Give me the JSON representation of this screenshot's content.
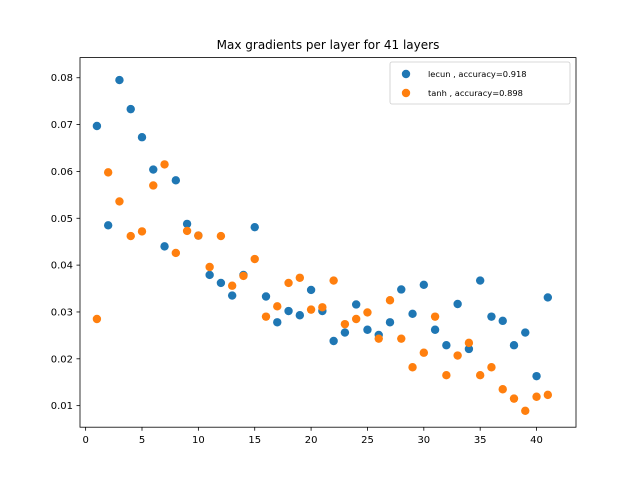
{
  "chart_data": {
    "type": "scatter",
    "title": "Max gradients per layer for 41 layers",
    "xlabel": "",
    "ylabel": "",
    "xlim": [
      -0.5,
      43.5
    ],
    "ylim": [
      0.0054,
      0.0843
    ],
    "xticks": [
      0,
      5,
      10,
      15,
      20,
      25,
      30,
      35,
      40
    ],
    "yticks": [
      0.01,
      0.02,
      0.03,
      0.04,
      0.05,
      0.06,
      0.07,
      0.08
    ],
    "legend_position": "top-right",
    "grid": false,
    "series": [
      {
        "name": "lecun , accuracy=0.918",
        "color": "#1f77b4",
        "x": [
          1,
          2,
          3,
          4,
          5,
          6,
          7,
          8,
          9,
          10,
          11,
          12,
          13,
          14,
          15,
          16,
          17,
          18,
          19,
          20,
          21,
          22,
          23,
          24,
          25,
          26,
          27,
          28,
          29,
          30,
          31,
          32,
          33,
          34,
          35,
          36,
          37,
          38,
          39,
          40,
          41
        ],
        "y": [
          0.0697,
          0.0485,
          0.0795,
          0.0733,
          0.0673,
          0.0604,
          0.044,
          0.0581,
          0.0488,
          0.0463,
          0.0379,
          0.0362,
          0.0335,
          0.0379,
          0.0481,
          0.0333,
          0.0278,
          0.0302,
          0.0293,
          0.0347,
          0.0302,
          0.0238,
          0.0256,
          0.0316,
          0.0262,
          0.0251,
          0.0278,
          0.0348,
          0.0296,
          0.0358,
          0.0262,
          0.0229,
          0.0317,
          0.0221,
          0.0367,
          0.029,
          0.0281,
          0.0229,
          0.0256,
          0.0163,
          0.0331
        ]
      },
      {
        "name": "tanh , accuracy=0.898",
        "color": "#ff7f0e",
        "x": [
          1,
          2,
          3,
          4,
          5,
          6,
          7,
          8,
          9,
          10,
          11,
          12,
          13,
          14,
          15,
          16,
          17,
          18,
          19,
          20,
          21,
          22,
          23,
          24,
          25,
          26,
          27,
          28,
          29,
          30,
          31,
          32,
          33,
          34,
          35,
          36,
          37,
          38,
          39,
          40,
          41
        ],
        "y": [
          0.0285,
          0.0598,
          0.0536,
          0.0462,
          0.0472,
          0.057,
          0.0615,
          0.0426,
          0.0473,
          0.0463,
          0.0396,
          0.0462,
          0.0356,
          0.0377,
          0.0413,
          0.029,
          0.0312,
          0.0362,
          0.0373,
          0.0305,
          0.031,
          0.0367,
          0.0274,
          0.0285,
          0.0299,
          0.0243,
          0.0325,
          0.0243,
          0.0182,
          0.0213,
          0.029,
          0.0165,
          0.0207,
          0.0234,
          0.0165,
          0.0182,
          0.0135,
          0.0115,
          0.0089,
          0.0119,
          0.0123
        ]
      }
    ]
  }
}
